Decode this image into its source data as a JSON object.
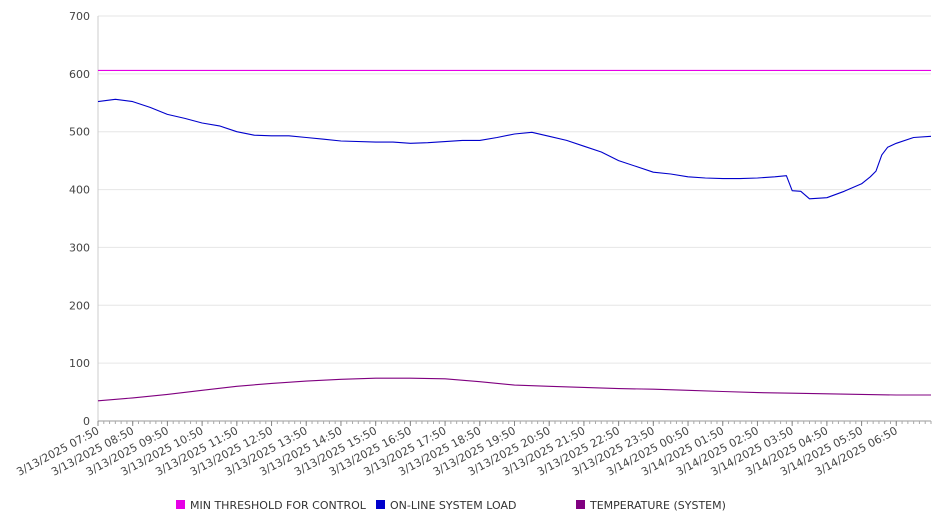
{
  "chart_data": {
    "type": "line",
    "title": "",
    "xlabel": "",
    "ylabel": "",
    "ylim": [
      0,
      700
    ],
    "yticks": [
      0,
      100,
      200,
      300,
      400,
      500,
      600,
      700
    ],
    "grid": true,
    "legend_position": "bottom",
    "xticks": [
      "3/13/2025 07:50",
      "3/13/2025 08:50",
      "3/13/2025 09:50",
      "3/13/2025 10:50",
      "3/13/2025 11:50",
      "3/13/2025 12:50",
      "3/13/2025 13:50",
      "3/13/2025 14:50",
      "3/13/2025 15:50",
      "3/13/2025 16:50",
      "3/13/2025 17:50",
      "3/13/2025 18:50",
      "3/13/2025 19:50",
      "3/13/2025 20:50",
      "3/13/2025 21:50",
      "3/13/2025 22:50",
      "3/13/2025 23:50",
      "3/14/2025 00:50",
      "3/14/2025 01:50",
      "3/14/2025 02:50",
      "3/14/2025 03:50",
      "3/14/2025 04:50",
      "3/14/2025 05:50",
      "3/14/2025 06:50"
    ],
    "x_end": "3/14/2025 07:50",
    "series": [
      {
        "name": "MIN THRESHOLD FOR CONTROL",
        "color": "#e600e6",
        "points": [
          [
            "3/13/2025 07:50",
            606
          ],
          [
            "3/14/2025 07:50",
            606
          ]
        ]
      },
      {
        "name": "ON-LINE SYSTEM LOAD",
        "color": "#0000cc",
        "points": [
          [
            "3/13/2025 07:50",
            552
          ],
          [
            "3/13/2025 08:20",
            556
          ],
          [
            "3/13/2025 08:50",
            552
          ],
          [
            "3/13/2025 09:20",
            542
          ],
          [
            "3/13/2025 09:50",
            530
          ],
          [
            "3/13/2025 10:20",
            523
          ],
          [
            "3/13/2025 10:50",
            515
          ],
          [
            "3/13/2025 11:20",
            510
          ],
          [
            "3/13/2025 11:50",
            500
          ],
          [
            "3/13/2025 12:20",
            494
          ],
          [
            "3/13/2025 12:50",
            493
          ],
          [
            "3/13/2025 13:20",
            493
          ],
          [
            "3/13/2025 13:50",
            490
          ],
          [
            "3/13/2025 14:20",
            487
          ],
          [
            "3/13/2025 14:50",
            484
          ],
          [
            "3/13/2025 15:50",
            482
          ],
          [
            "3/13/2025 16:20",
            482
          ],
          [
            "3/13/2025 16:50",
            480
          ],
          [
            "3/13/2025 17:20",
            481
          ],
          [
            "3/13/2025 17:50",
            483
          ],
          [
            "3/13/2025 18:20",
            485
          ],
          [
            "3/13/2025 18:50",
            485
          ],
          [
            "3/13/2025 19:20",
            490
          ],
          [
            "3/13/2025 19:50",
            496
          ],
          [
            "3/13/2025 20:20",
            499
          ],
          [
            "3/13/2025 20:50",
            492
          ],
          [
            "3/13/2025 21:20",
            485
          ],
          [
            "3/13/2025 21:50",
            475
          ],
          [
            "3/13/2025 22:20",
            465
          ],
          [
            "3/13/2025 22:50",
            450
          ],
          [
            "3/13/2025 23:20",
            440
          ],
          [
            "3/13/2025 23:50",
            430
          ],
          [
            "3/14/2025 00:20",
            427
          ],
          [
            "3/14/2025 00:50",
            422
          ],
          [
            "3/14/2025 01:20",
            420
          ],
          [
            "3/14/2025 01:50",
            419
          ],
          [
            "3/14/2025 02:20",
            419
          ],
          [
            "3/14/2025 02:50",
            420
          ],
          [
            "3/14/2025 03:20",
            422
          ],
          [
            "3/14/2025 03:40",
            424
          ],
          [
            "3/14/2025 03:50",
            398
          ],
          [
            "3/14/2025 04:05",
            397
          ],
          [
            "3/14/2025 04:20",
            384
          ],
          [
            "3/14/2025 04:50",
            386
          ],
          [
            "3/14/2025 05:20",
            397
          ],
          [
            "3/14/2025 05:50",
            410
          ],
          [
            "3/14/2025 06:05",
            422
          ],
          [
            "3/14/2025 06:15",
            432
          ],
          [
            "3/14/2025 06:25",
            460
          ],
          [
            "3/14/2025 06:35",
            473
          ],
          [
            "3/14/2025 06:50",
            480
          ],
          [
            "3/14/2025 07:20",
            490
          ],
          [
            "3/14/2025 07:50",
            492
          ]
        ]
      },
      {
        "name": "TEMPERATURE (SYSTEM)",
        "color": "#800080",
        "points": [
          [
            "3/13/2025 07:50",
            35
          ],
          [
            "3/13/2025 08:50",
            40
          ],
          [
            "3/13/2025 09:50",
            46
          ],
          [
            "3/13/2025 10:50",
            53
          ],
          [
            "3/13/2025 11:50",
            60
          ],
          [
            "3/13/2025 12:50",
            65
          ],
          [
            "3/13/2025 13:50",
            69
          ],
          [
            "3/13/2025 14:50",
            72
          ],
          [
            "3/13/2025 15:50",
            74
          ],
          [
            "3/13/2025 16:50",
            74
          ],
          [
            "3/13/2025 17:50",
            73
          ],
          [
            "3/13/2025 18:50",
            68
          ],
          [
            "3/13/2025 19:50",
            62
          ],
          [
            "3/13/2025 20:50",
            60
          ],
          [
            "3/13/2025 21:50",
            58
          ],
          [
            "3/13/2025 22:50",
            56
          ],
          [
            "3/13/2025 23:50",
            55
          ],
          [
            "3/14/2025 00:50",
            53
          ],
          [
            "3/14/2025 01:50",
            51
          ],
          [
            "3/14/2025 02:50",
            49
          ],
          [
            "3/14/2025 03:50",
            48
          ],
          [
            "3/14/2025 04:50",
            47
          ],
          [
            "3/14/2025 05:50",
            46
          ],
          [
            "3/14/2025 06:50",
            45
          ],
          [
            "3/14/2025 07:50",
            45
          ]
        ]
      }
    ]
  }
}
